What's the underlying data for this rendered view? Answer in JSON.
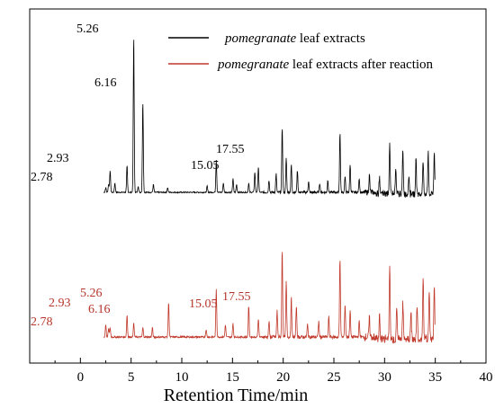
{
  "chart_data": {
    "type": "line",
    "title": "",
    "xlabel": "Retention Time/min",
    "ylabel": "",
    "xlim": [
      -5,
      40
    ],
    "xticks": [
      "0",
      "5",
      "10",
      "15",
      "20",
      "25",
      "30",
      "35",
      "40"
    ],
    "grid": false,
    "legend_position": "top-right",
    "series": [
      {
        "name_italic": "pomegranate",
        "name_rest": " leaf extracts",
        "color": "#000000",
        "peaks": [
          {
            "x": 2.5,
            "y": 3
          },
          {
            "x": 2.78,
            "y": 5
          },
          {
            "x": 2.93,
            "y": 14
          },
          {
            "x": 3.4,
            "y": 6
          },
          {
            "x": 4.6,
            "y": 17
          },
          {
            "x": 5.26,
            "y": 100
          },
          {
            "x": 5.7,
            "y": 4
          },
          {
            "x": 6.16,
            "y": 58
          },
          {
            "x": 7.2,
            "y": 5
          },
          {
            "x": 8.6,
            "y": 3
          },
          {
            "x": 12.5,
            "y": 4
          },
          {
            "x": 13.4,
            "y": 21
          },
          {
            "x": 14.1,
            "y": 6
          },
          {
            "x": 15.05,
            "y": 9
          },
          {
            "x": 15.4,
            "y": 5
          },
          {
            "x": 16.6,
            "y": 6
          },
          {
            "x": 17.2,
            "y": 13
          },
          {
            "x": 17.55,
            "y": 16
          },
          {
            "x": 18.6,
            "y": 8
          },
          {
            "x": 19.3,
            "y": 12
          },
          {
            "x": 19.9,
            "y": 42
          },
          {
            "x": 20.3,
            "y": 22
          },
          {
            "x": 20.8,
            "y": 18
          },
          {
            "x": 21.4,
            "y": 14
          },
          {
            "x": 22.5,
            "y": 7
          },
          {
            "x": 23.6,
            "y": 6
          },
          {
            "x": 24.4,
            "y": 8
          },
          {
            "x": 25.6,
            "y": 38
          },
          {
            "x": 26.1,
            "y": 10
          },
          {
            "x": 26.6,
            "y": 18
          },
          {
            "x": 27.5,
            "y": 9
          },
          {
            "x": 28.5,
            "y": 11
          },
          {
            "x": 29.5,
            "y": 10
          },
          {
            "x": 30.5,
            "y": 33
          },
          {
            "x": 31.1,
            "y": 16
          },
          {
            "x": 31.8,
            "y": 29
          },
          {
            "x": 32.4,
            "y": 12
          },
          {
            "x": 33.1,
            "y": 22
          },
          {
            "x": 33.8,
            "y": 20
          },
          {
            "x": 34.3,
            "y": 27
          },
          {
            "x": 34.9,
            "y": 26
          }
        ],
        "labels": [
          "2.78",
          "2.93",
          "5.26",
          "6.16",
          "15.05",
          "17.55"
        ]
      },
      {
        "name_italic": "pomegranate",
        "name_rest": " leaf extracts after reaction",
        "color": "#c0392b",
        "peaks": [
          {
            "x": 2.5,
            "y": 8
          },
          {
            "x": 2.78,
            "y": 5
          },
          {
            "x": 2.93,
            "y": 6
          },
          {
            "x": 4.6,
            "y": 14
          },
          {
            "x": 5.26,
            "y": 9
          },
          {
            "x": 6.16,
            "y": 6
          },
          {
            "x": 7.1,
            "y": 6
          },
          {
            "x": 8.7,
            "y": 22
          },
          {
            "x": 12.4,
            "y": 5
          },
          {
            "x": 13.4,
            "y": 31
          },
          {
            "x": 14.3,
            "y": 8
          },
          {
            "x": 15.05,
            "y": 9
          },
          {
            "x": 16.6,
            "y": 20
          },
          {
            "x": 17.55,
            "y": 12
          },
          {
            "x": 18.6,
            "y": 10
          },
          {
            "x": 19.4,
            "y": 17
          },
          {
            "x": 19.9,
            "y": 56
          },
          {
            "x": 20.3,
            "y": 35
          },
          {
            "x": 20.8,
            "y": 25
          },
          {
            "x": 21.3,
            "y": 20
          },
          {
            "x": 22.4,
            "y": 8
          },
          {
            "x": 23.5,
            "y": 10
          },
          {
            "x": 24.5,
            "y": 13
          },
          {
            "x": 25.6,
            "y": 51
          },
          {
            "x": 26.1,
            "y": 21
          },
          {
            "x": 26.6,
            "y": 17
          },
          {
            "x": 27.5,
            "y": 10
          },
          {
            "x": 28.5,
            "y": 12
          },
          {
            "x": 29.5,
            "y": 14
          },
          {
            "x": 30.5,
            "y": 48
          },
          {
            "x": 31.2,
            "y": 20
          },
          {
            "x": 31.8,
            "y": 23
          },
          {
            "x": 32.6,
            "y": 18
          },
          {
            "x": 33.2,
            "y": 20
          },
          {
            "x": 33.8,
            "y": 38
          },
          {
            "x": 34.4,
            "y": 31
          },
          {
            "x": 34.9,
            "y": 35
          }
        ],
        "labels": [
          "2.78",
          "2.93",
          "5.26",
          "6.16",
          "15.05",
          "17.55"
        ]
      }
    ]
  }
}
